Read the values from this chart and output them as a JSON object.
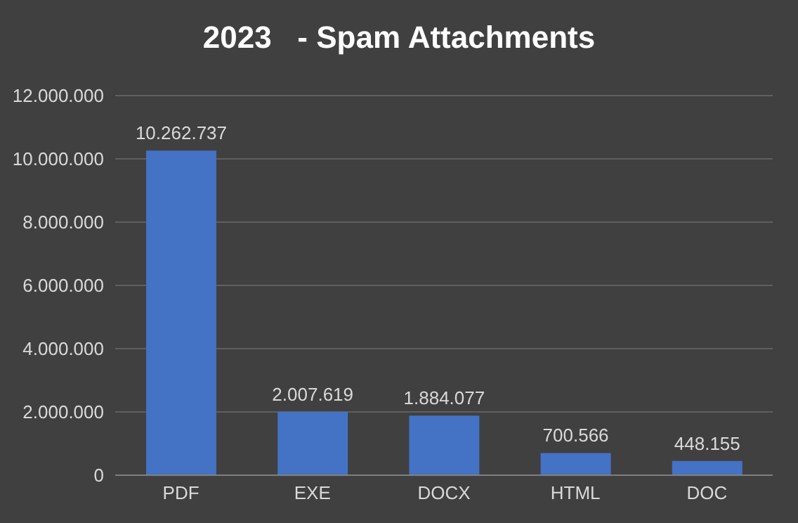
{
  "chart_data": {
    "type": "bar",
    "title": "2023   - Spam Attachments",
    "categories": [
      "PDF",
      "EXE",
      "DOCX",
      "HTML",
      "DOC"
    ],
    "values": [
      10262737,
      2007619,
      1884077,
      700566,
      448155
    ],
    "value_labels": [
      "10.262.737",
      "2.007.619",
      "1.884.077",
      "700.566",
      "448.155"
    ],
    "color": "#4472c4",
    "ylim": [
      0,
      12000000
    ],
    "yticks": [
      0,
      {
        "value": 2000000,
        "label": "2.000.000"
      },
      {
        "value": 4000000,
        "label": "4.000.000"
      },
      {
        "value": 6000000,
        "label": "6.000.000"
      },
      {
        "value": 8000000,
        "label": "8.000.000"
      },
      {
        "value": 10000000,
        "label": "10.000.000"
      },
      {
        "value": 12000000,
        "label": "12.000.000"
      }
    ],
    "grid": "y"
  }
}
